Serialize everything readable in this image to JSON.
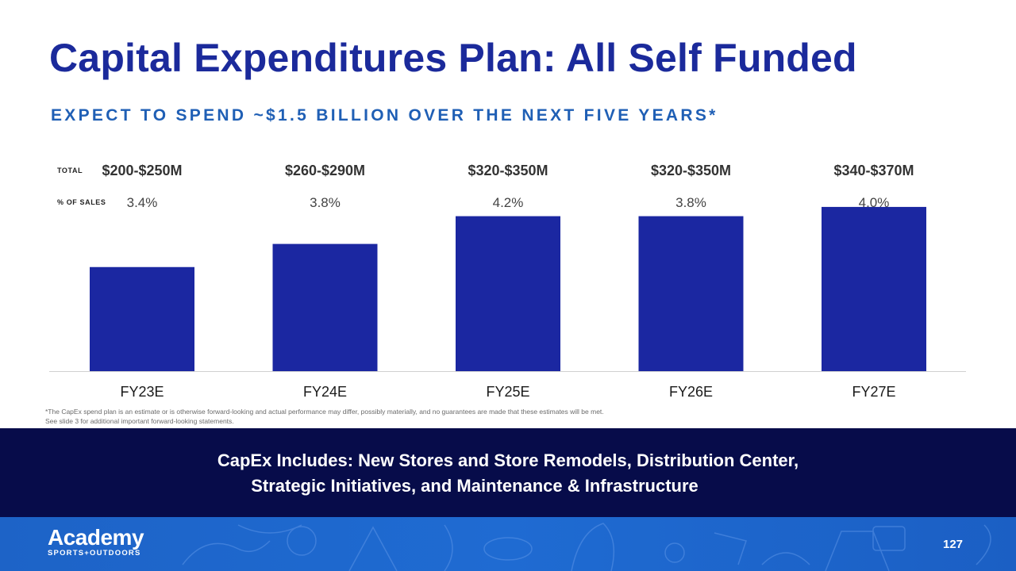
{
  "title": "Capital Expenditures Plan: All Self Funded",
  "subtitle": "EXPECT TO SPEND ~$1.5 BILLION OVER THE NEXT FIVE YEARS*",
  "row_labels": {
    "total": "TOTAL",
    "pct": "% OF SALES"
  },
  "chart_data": {
    "type": "bar",
    "categories": [
      "FY23E",
      "FY24E",
      "FY25E",
      "FY26E",
      "FY27E"
    ],
    "totals": [
      "$200-$250M",
      "$260-$290M",
      "$320-$350M",
      "$320-$350M",
      "$340-$370M"
    ],
    "pct_of_sales": [
      "3.4%",
      "3.8%",
      "4.2%",
      "3.8%",
      "4.0%"
    ],
    "series": [
      {
        "values": [
          225,
          275,
          335,
          335,
          355
        ]
      }
    ],
    "ylim": [
      0,
      360
    ],
    "grid": false,
    "colors": {
      "bar": "#1b27a1",
      "baseline": "#d0d0d0"
    }
  },
  "footnote": [
    "*The CapEx spend plan is an estimate or is otherwise forward-looking and actual performance may differ, possibly materially, and no guarantees are made that these estimates will be met.",
    "See slide 3 for additional important forward-looking statements."
  ],
  "banner": {
    "line1": "CapEx Includes: New Stores and Store Remodels, Distribution Center,",
    "line2": "Strategic Initiatives, and Maintenance & Infrastructure"
  },
  "logo": {
    "main": "Academy",
    "sub": "SPORTS+OUTDOORS"
  },
  "page_number": "127",
  "colors": {
    "title": "#1b2a9b",
    "subtitle": "#1f5fb5",
    "banner": "#070c4a",
    "footer": "#1d63c7"
  }
}
